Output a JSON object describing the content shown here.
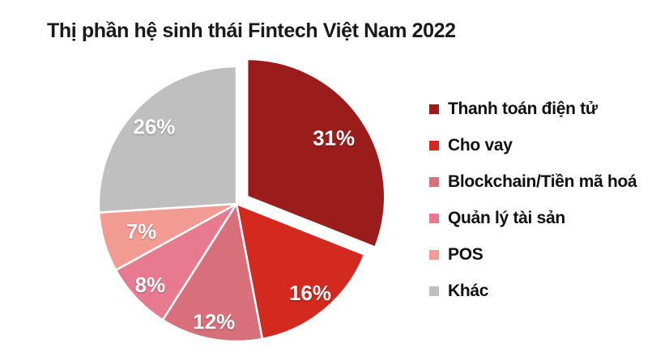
{
  "chart_data": {
    "type": "pie",
    "title": "Thị phần hệ sinh thái Fintech Việt Nam 2022",
    "slices": [
      {
        "label": "Thanh toán điện tử",
        "value": 31,
        "value_label": "31%",
        "color": "#9B1D1B"
      },
      {
        "label": "Cho vay",
        "value": 16,
        "value_label": "16%",
        "color": "#D4291E"
      },
      {
        "label": "Blockchain/Tiền mã hoá",
        "value": 12,
        "value_label": "12%",
        "color": "#D8707B"
      },
      {
        "label": "Quản lý tài sản",
        "value": 8,
        "value_label": "8%",
        "color": "#E87A90"
      },
      {
        "label": "POS",
        "value": 7,
        "value_label": "7%",
        "color": "#F29B92"
      },
      {
        "label": "Khác",
        "value": 26,
        "value_label": "26%",
        "color": "#BFBFBF"
      }
    ],
    "start_angle_deg": 0,
    "clockwise": true,
    "exploded_slice": "Thanh toán điện tử",
    "slice_label_color": "#FFFFFF",
    "slice_border_color": "#FFFFFF",
    "legend_position": "right",
    "title_color": "#1A1A1A",
    "legend_text_color": "#111111",
    "background": "#FFFFFF"
  }
}
